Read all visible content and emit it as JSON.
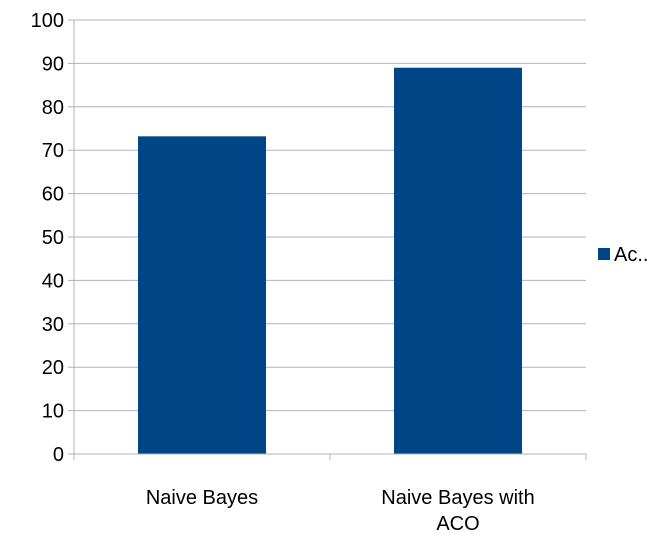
{
  "chart_data": {
    "type": "bar",
    "categories": [
      "Naive Bayes",
      "Naive Bayes with ACO"
    ],
    "category_label_lines": [
      [
        "Naive Bayes"
      ],
      [
        "Naive Bayes with",
        "ACO"
      ]
    ],
    "series": [
      {
        "name": "Ac..",
        "values": [
          73.2,
          89.0
        ],
        "color": "#004586"
      }
    ],
    "ylim": [
      0,
      100
    ],
    "yticks": [
      0,
      10,
      20,
      30,
      40,
      50,
      60,
      70,
      80,
      90,
      100
    ],
    "ytick_labels": [
      "0",
      "10",
      "20",
      "30",
      "40",
      "50",
      "60",
      "70",
      "80",
      "90",
      "100"
    ],
    "grid": true,
    "legend_position": "right",
    "title": "",
    "xlabel": "",
    "ylabel": ""
  }
}
